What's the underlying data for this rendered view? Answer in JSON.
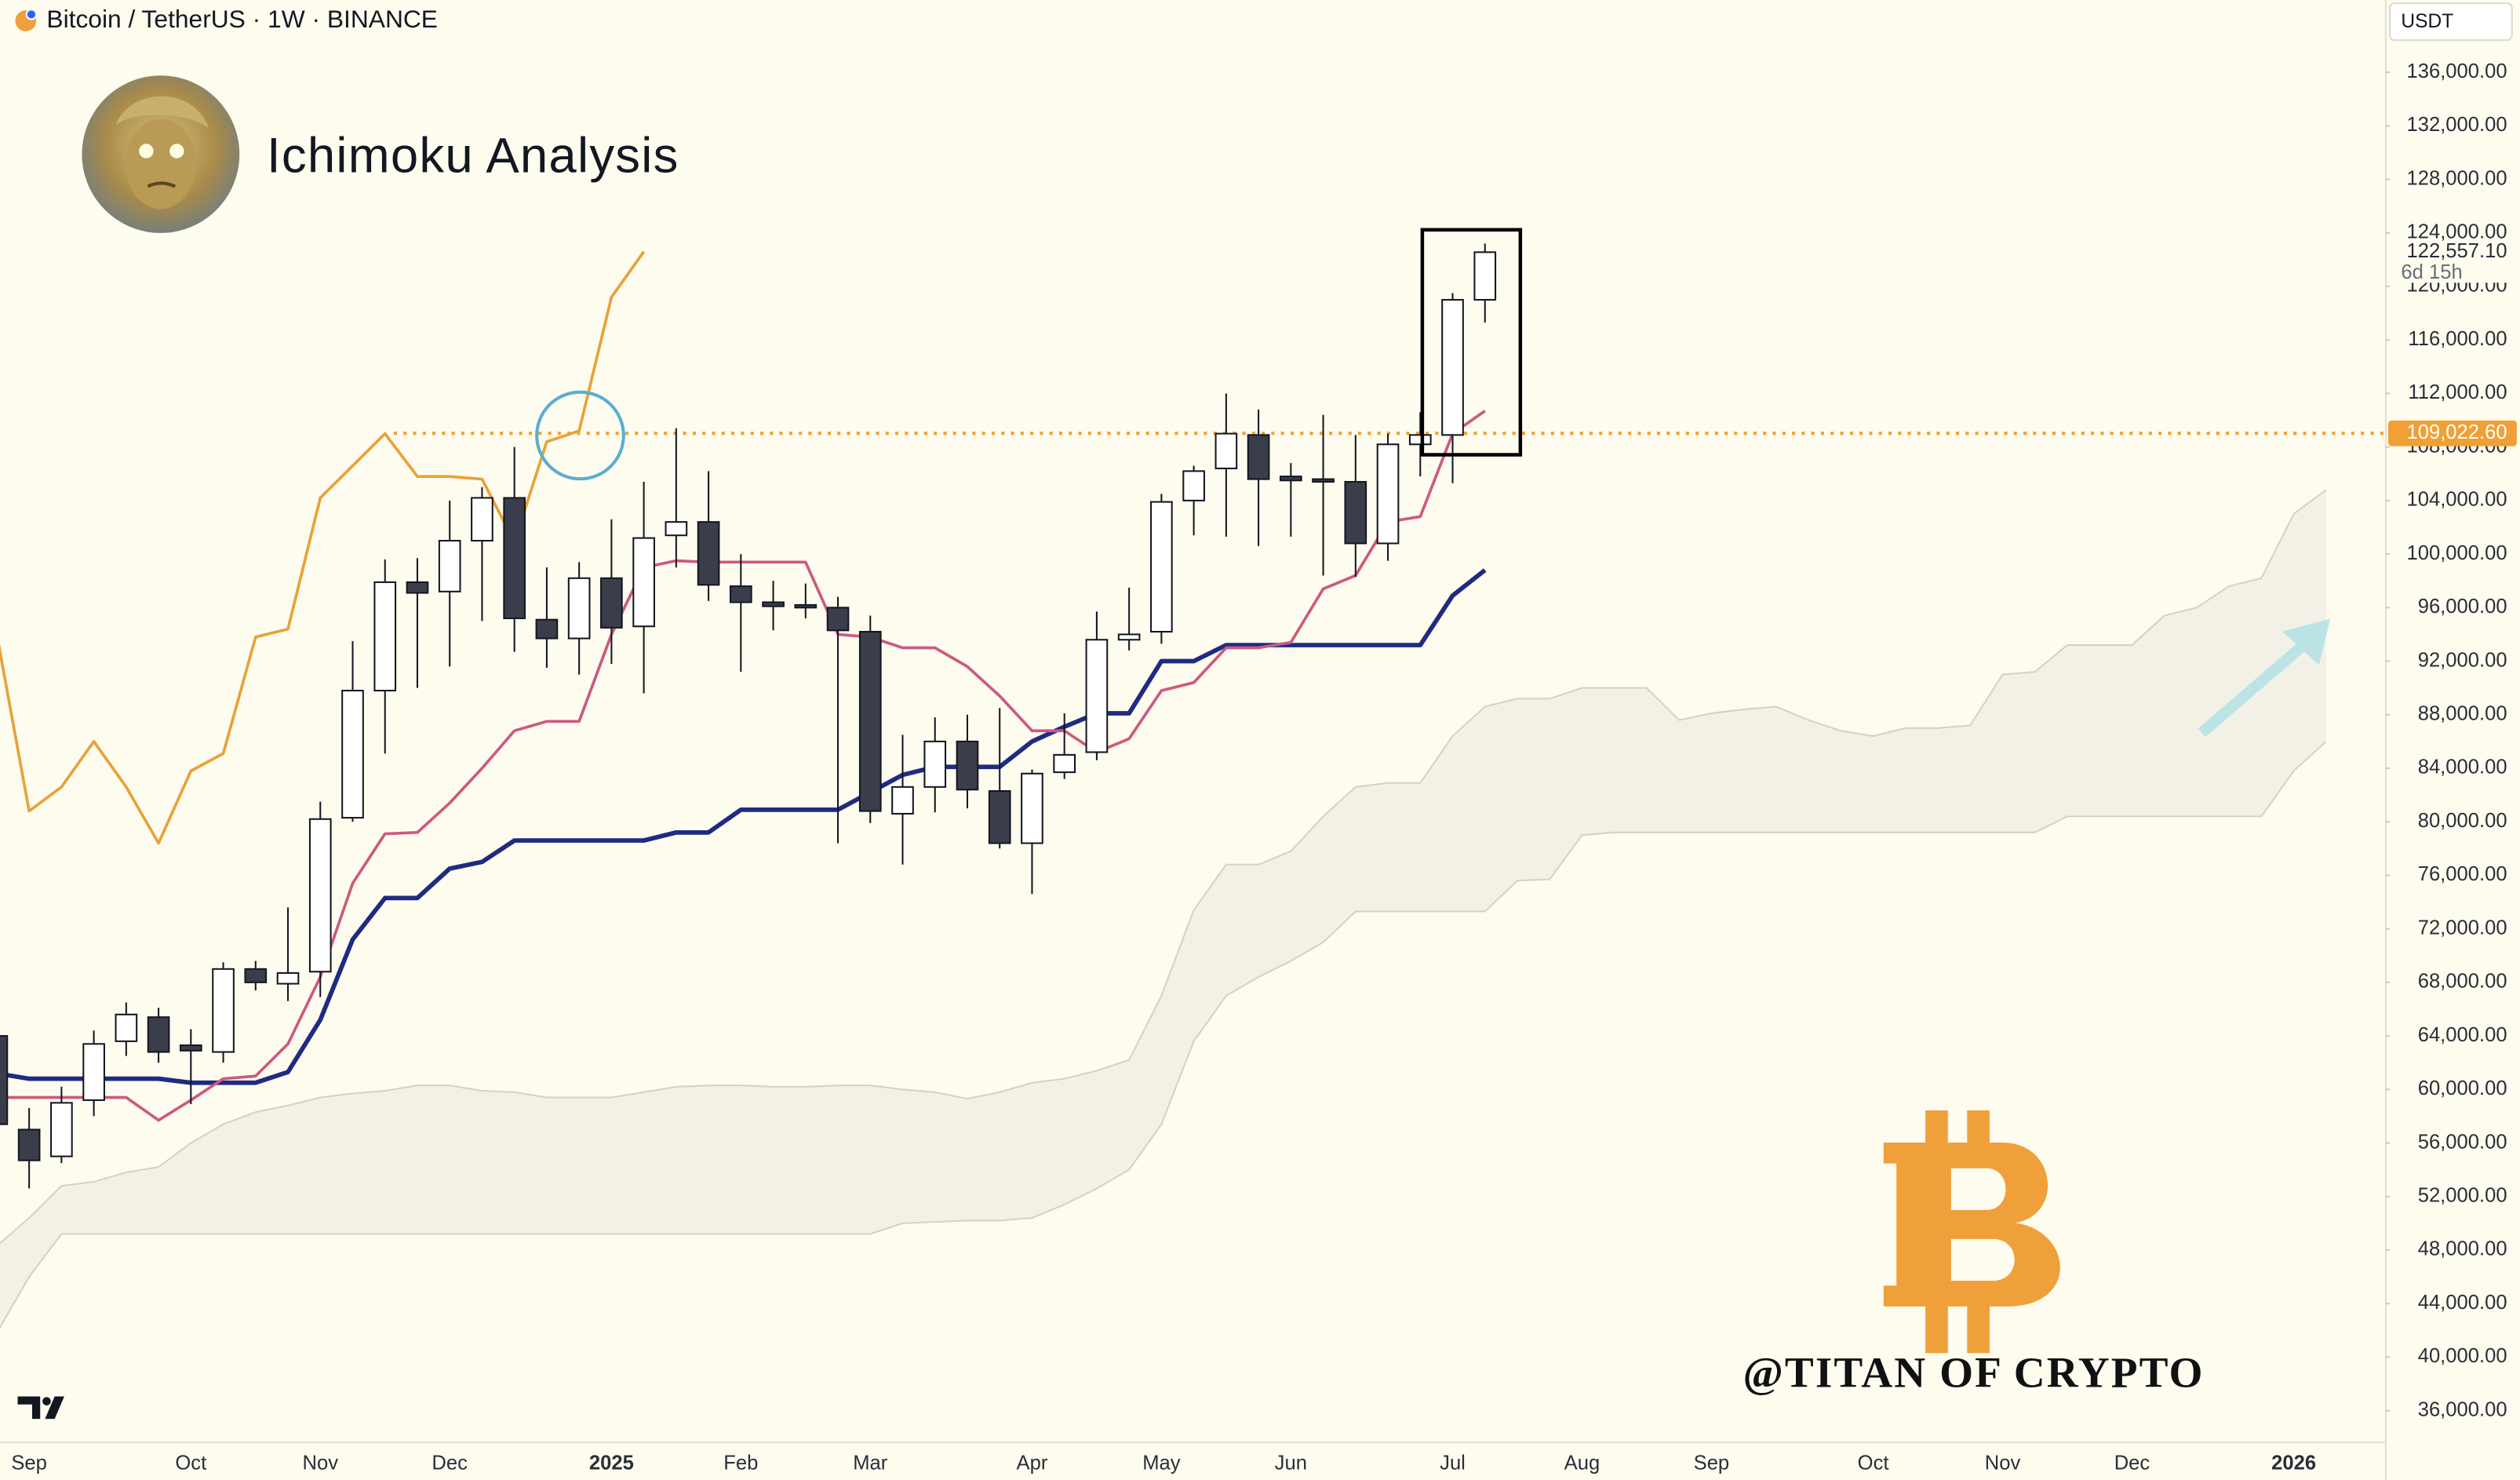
{
  "header": {
    "symbol": "Bitcoin / TetherUS · 1W · BINANCE",
    "currency": "USDT"
  },
  "signature": "@TITAN OF CRYPTO",
  "chart_data": {
    "type": "candlestick",
    "title": "Ichimoku Analysis",
    "categories": [
      null,
      "Sep",
      null,
      null,
      null,
      null,
      "Oct",
      null,
      null,
      null,
      "Nov",
      null,
      null,
      null,
      "Dec",
      null,
      null,
      null,
      null,
      "2025",
      null,
      null,
      null,
      "Feb",
      null,
      null,
      null,
      "Mar",
      null,
      null,
      null,
      null,
      "Apr",
      null,
      null,
      null,
      "May",
      null,
      null,
      null,
      "Jun",
      null,
      null,
      null,
      null,
      "Jul",
      null,
      null,
      null,
      "Aug",
      null,
      null,
      null,
      "Sep",
      null,
      null,
      null,
      null,
      "Oct",
      null,
      null,
      null,
      "Nov",
      null,
      null,
      null,
      "Dec",
      null,
      null,
      null,
      null,
      "2026",
      null,
      null
    ],
    "ylim": [
      33700,
      141400
    ],
    "yticks": [
      {
        "value": 36000,
        "label": "36,000.00"
      },
      {
        "value": 40000,
        "label": "40,000.00"
      },
      {
        "value": 44000,
        "label": "44,000.00"
      },
      {
        "value": 48000,
        "label": "48,000.00"
      },
      {
        "value": 52000,
        "label": "52,000.00"
      },
      {
        "value": 56000,
        "label": "56,000.00"
      },
      {
        "value": 60000,
        "label": "60,000.00"
      },
      {
        "value": 64000,
        "label": "64,000.00"
      },
      {
        "value": 68000,
        "label": "68,000.00"
      },
      {
        "value": 72000,
        "label": "72,000.00"
      },
      {
        "value": 76000,
        "label": "76,000.00"
      },
      {
        "value": 80000,
        "label": "80,000.00"
      },
      {
        "value": 84000,
        "label": "84,000.00"
      },
      {
        "value": 88000,
        "label": "88,000.00"
      },
      {
        "value": 92000,
        "label": "92,000.00"
      },
      {
        "value": 96000,
        "label": "96,000.00"
      },
      {
        "value": 100000,
        "label": "100,000.00"
      },
      {
        "value": 104000,
        "label": "104,000.00"
      },
      {
        "value": 108000,
        "label": "108,000.00"
      },
      {
        "value": 112000,
        "label": "112,000.00"
      },
      {
        "value": 116000,
        "label": "116,000.00"
      },
      {
        "value": 120000,
        "label": "120,000.00"
      },
      {
        "value": 124000,
        "label": "124,000.00"
      },
      {
        "value": 128000,
        "label": "128,000.00"
      },
      {
        "value": 132000,
        "label": "132,000.00"
      },
      {
        "value": 136000,
        "label": "136,000.00"
      }
    ],
    "grid": false,
    "candles": {
      "up_color": "#ffffff",
      "down_color": "#3b3e4a",
      "outline_color": "#131722",
      "open": [
        64000,
        57000,
        55000,
        59200,
        63600,
        65400,
        63300,
        62800,
        69000,
        67900,
        68800,
        80300,
        89800,
        97900,
        97200,
        101000,
        104200,
        95100,
        93700,
        98200,
        94600,
        101400,
        102400,
        97600,
        96400,
        96200,
        96000,
        94200,
        80600,
        82600,
        86000,
        82300,
        78400,
        83700,
        85200,
        93600,
        94200,
        104000,
        106400,
        108900,
        105800,
        105600,
        105400,
        100800,
        108200,
        108900,
        119000,
        null,
        null,
        null,
        null,
        null,
        null,
        null,
        null,
        null,
        null,
        null,
        null,
        null,
        null,
        null,
        null,
        null,
        null,
        null,
        null,
        null,
        null,
        null,
        null,
        null,
        null,
        null
      ],
      "high": [
        65000,
        58600,
        60200,
        64400,
        66500,
        66100,
        64500,
        69500,
        69600,
        73600,
        81500,
        93500,
        99600,
        99700,
        104000,
        105000,
        108000,
        99000,
        99400,
        102600,
        105400,
        109400,
        106200,
        100000,
        98000,
        97800,
        96800,
        95400,
        86500,
        87800,
        88000,
        88500,
        83900,
        88100,
        95700,
        97500,
        104500,
        106600,
        112000,
        110800,
        106800,
        110400,
        108900,
        109000,
        110600,
        119500,
        123200,
        null,
        null,
        null,
        null,
        null,
        null,
        null,
        null,
        null,
        null,
        null,
        null,
        null,
        null,
        null,
        null,
        null,
        null,
        null,
        null,
        null,
        null,
        null,
        null,
        null,
        null,
        null
      ],
      "low": [
        57000,
        52600,
        54500,
        58000,
        62500,
        62000,
        58900,
        62000,
        67400,
        66600,
        66900,
        80000,
        85100,
        90000,
        91600,
        95000,
        92700,
        91500,
        91000,
        91800,
        89600,
        99000,
        96500,
        91200,
        94300,
        95200,
        78400,
        79900,
        76800,
        80700,
        81000,
        78000,
        74600,
        83200,
        84600,
        92800,
        93300,
        101400,
        101300,
        100600,
        101300,
        98400,
        98300,
        99500,
        105800,
        105300,
        117300,
        null,
        null,
        null,
        null,
        null,
        null,
        null,
        null,
        null,
        null,
        null,
        null,
        null,
        null,
        null,
        null,
        null,
        null,
        null,
        null,
        null,
        null,
        null,
        null,
        null,
        null,
        null
      ],
      "close": [
        57400,
        54700,
        59000,
        63400,
        65600,
        62800,
        62900,
        69000,
        68000,
        68700,
        80200,
        89800,
        97900,
        97100,
        101000,
        104200,
        95200,
        93700,
        98200,
        94500,
        101200,
        102400,
        97700,
        96400,
        96100,
        96000,
        94300,
        80800,
        82600,
        86000,
        82400,
        78400,
        83600,
        85000,
        93600,
        94000,
        103900,
        106200,
        109000,
        105600,
        105500,
        105400,
        100800,
        108200,
        108900,
        119000,
        122557.1,
        null,
        null,
        null,
        null,
        null,
        null,
        null,
        null,
        null,
        null,
        null,
        null,
        null,
        null,
        null,
        null,
        null,
        null,
        null,
        null,
        null,
        null,
        null,
        null,
        null,
        null,
        null
      ]
    },
    "cloud": {
      "fill": "#f3f1e6",
      "color": "#d4d2c8",
      "upper": [
        48300,
        50400,
        52800,
        53100,
        53800,
        54200,
        56000,
        57400,
        58300,
        58800,
        59400,
        59700,
        59900,
        60300,
        60300,
        59900,
        59800,
        59400,
        59400,
        59400,
        59800,
        60200,
        60300,
        60300,
        60200,
        60200,
        60300,
        60300,
        60000,
        59800,
        59300,
        59800,
        60500,
        60800,
        61400,
        62200,
        67000,
        73400,
        76800,
        76800,
        77800,
        80400,
        82600,
        82900,
        82900,
        86400,
        88600,
        89200,
        89200,
        90000,
        90000,
        90000,
        87600,
        88100,
        88400,
        88600,
        87600,
        86800,
        86400,
        87000,
        87000,
        87200,
        91000,
        91200,
        93200,
        93200,
        93200,
        95400,
        96000,
        97600,
        98200,
        103000,
        104800,
        null
      ],
      "lower": [
        41800,
        46000,
        49200,
        49200,
        49200,
        49200,
        49200,
        49200,
        49200,
        49200,
        49200,
        49200,
        49200,
        49200,
        49200,
        49200,
        49200,
        49200,
        49200,
        49200,
        49200,
        49200,
        49200,
        49200,
        49200,
        49200,
        49200,
        49200,
        50000,
        50100,
        50200,
        50200,
        50400,
        51400,
        52600,
        54000,
        57400,
        63600,
        67000,
        68400,
        69600,
        71000,
        73300,
        73300,
        73300,
        73300,
        73300,
        75600,
        75700,
        79000,
        79200,
        79200,
        79200,
        79200,
        79200,
        79200,
        79200,
        79200,
        79200,
        79200,
        79200,
        79200,
        79200,
        79200,
        80400,
        80400,
        80400,
        80400,
        80400,
        80400,
        80400,
        83800,
        86000,
        null
      ]
    },
    "series": [
      {
        "color": "#e8a23a",
        "values": [
          94000,
          80800,
          82600,
          86000,
          82600,
          78400,
          83800,
          85100,
          93800,
          94400,
          104200,
          106600,
          109000,
          105800,
          105800,
          105600,
          100900,
          108400,
          109200,
          119200,
          122600,
          null,
          null,
          null,
          null,
          null,
          null,
          null,
          null,
          null,
          null,
          null,
          null,
          null,
          null,
          null,
          null,
          null,
          null,
          null,
          null,
          null,
          null,
          null,
          null,
          null,
          null,
          null,
          null,
          null,
          null,
          null,
          null,
          null,
          null,
          null,
          null,
          null,
          null,
          null,
          null,
          null,
          null,
          null,
          null,
          null,
          null,
          null,
          null,
          null,
          null,
          null,
          null,
          null
        ]
      },
      {
        "color": "#1f2b82",
        "values": [
          61200,
          60800,
          60800,
          60800,
          60800,
          60800,
          60500,
          60500,
          60500,
          61300,
          65200,
          71200,
          74300,
          74300,
          76500,
          77000,
          78600,
          78600,
          78600,
          78600,
          78600,
          79200,
          79200,
          80900,
          80900,
          80900,
          80900,
          82200,
          83500,
          84100,
          84100,
          84100,
          86000,
          87100,
          88100,
          88100,
          92000,
          92000,
          93200,
          93200,
          93200,
          93200,
          93200,
          93200,
          93200,
          96900,
          98800,
          null,
          null,
          null,
          null,
          null,
          null,
          null,
          null,
          null,
          null,
          null,
          null,
          null,
          null,
          null,
          null,
          null,
          null,
          null,
          null,
          null,
          null,
          null,
          null,
          null,
          null,
          null
        ]
      },
      {
        "color": "#cc5a82",
        "values": [
          59400,
          59400,
          59400,
          59400,
          59400,
          57700,
          59200,
          60800,
          61000,
          63400,
          68400,
          75400,
          79100,
          79200,
          81400,
          84000,
          86800,
          87500,
          87500,
          94000,
          99000,
          99500,
          99400,
          99400,
          99400,
          99400,
          94000,
          93800,
          93000,
          93000,
          91600,
          89400,
          86800,
          86800,
          85200,
          86200,
          89800,
          90400,
          93000,
          93000,
          93400,
          97400,
          98400,
          102400,
          102800,
          109000,
          110700,
          null,
          null,
          null,
          null,
          null,
          null,
          null,
          null,
          null,
          null,
          null,
          null,
          null,
          null,
          null,
          null,
          null,
          null,
          null,
          null,
          null,
          null,
          null,
          null,
          null,
          null,
          null
        ]
      }
    ],
    "price_line": {
      "value": 109022.6,
      "label": "109,022.60",
      "color": "#f0a035"
    },
    "last_price": {
      "value": 122557.1,
      "label": "122,557.10",
      "countdown": "6d 15h"
    }
  }
}
